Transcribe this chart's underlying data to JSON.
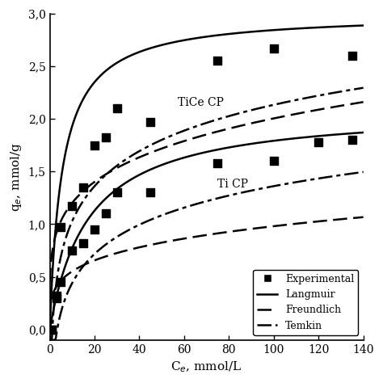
{
  "title": "",
  "xlabel": "C$_e$, mmol/L",
  "ylabel": "q$_e$, mmol/g",
  "xlim": [
    0,
    140
  ],
  "ylim": [
    -0.1,
    3.0
  ],
  "yticks": [
    0.0,
    0.5,
    1.0,
    1.5,
    2.0,
    2.5,
    3.0
  ],
  "xticks": [
    0,
    20,
    40,
    60,
    80,
    100,
    120,
    140
  ],
  "ytick_labels": [
    "0,0",
    "0,5",
    "1,0",
    "1,5",
    "2,0",
    "2,5",
    "3,0"
  ],
  "label_tice_cp": "TiCe CP",
  "label_ti_cp": "Ti CP",
  "exp_tice_x": [
    1,
    3,
    5,
    10,
    15,
    20,
    25,
    30,
    45,
    75,
    100,
    135
  ],
  "exp_tice_y": [
    0.0,
    0.32,
    0.97,
    1.17,
    1.35,
    1.75,
    1.82,
    2.1,
    1.97,
    2.55,
    2.67,
    2.6
  ],
  "exp_ti_x": [
    1,
    3,
    5,
    10,
    15,
    20,
    25,
    30,
    45,
    75,
    100,
    120,
    135
  ],
  "exp_ti_y": [
    0.0,
    0.3,
    0.45,
    0.75,
    0.82,
    0.95,
    1.1,
    1.3,
    1.3,
    1.58,
    1.6,
    1.78,
    1.8
  ],
  "langmuir_tice_qmax": 3.0,
  "langmuir_tice_KL": 0.18,
  "langmuir_ti_qmax": 2.1,
  "langmuir_ti_KL": 0.058,
  "freundlich_tice_KF": 0.72,
  "freundlich_tice_n": 4.5,
  "freundlich_ti_KF": 0.31,
  "freundlich_ti_n": 4.0,
  "temkin_tice_A": 0.85,
  "temkin_tice_B": 0.48,
  "temkin_ti_A": 0.3,
  "temkin_ti_B": 0.4,
  "color_exp": "#000000",
  "color_langmuir": "#000000",
  "color_freundlich": "#000000",
  "color_temkin": "#000000",
  "background_color": "#ffffff",
  "figsize": [
    4.74,
    4.74
  ],
  "dpi": 100
}
